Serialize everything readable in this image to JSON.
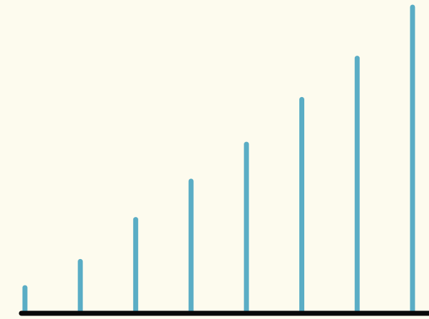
{
  "chart_data": {
    "type": "bar",
    "categories": [
      null,
      null,
      null,
      null,
      null,
      null,
      null,
      null
    ],
    "values": [
      33,
      70,
      129,
      183,
      235,
      298,
      356,
      428
    ],
    "color": "#5aadc5",
    "baseline_color": "#0a0a0a",
    "ylim": [
      0,
      430
    ]
  }
}
